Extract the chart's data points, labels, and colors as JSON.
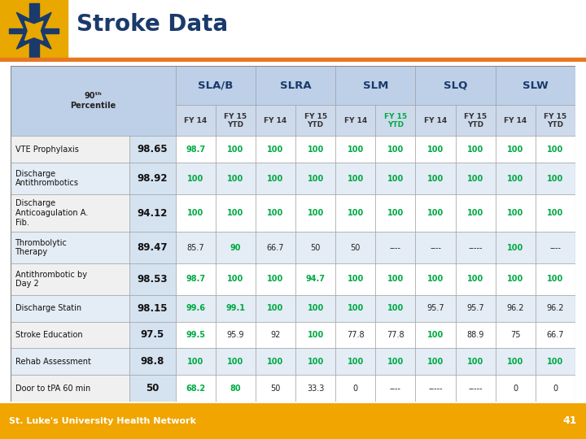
{
  "title": "Stroke Data",
  "title_color": "#1a3a6b",
  "group_headers": [
    "SLA/B",
    "SLRA",
    "SLM",
    "SLQ",
    "SLW"
  ],
  "rows": [
    {
      "label": "VTE Prophylaxis",
      "percentile": "98.65",
      "values": [
        "98.7",
        "100",
        "100",
        "100",
        "100",
        "100",
        "100",
        "100",
        "100",
        "100"
      ],
      "green_mask": [
        true,
        true,
        true,
        true,
        true,
        true,
        true,
        true,
        true,
        true
      ]
    },
    {
      "label": "Discharge\nAntithrombotics",
      "percentile": "98.92",
      "values": [
        "100",
        "100",
        "100",
        "100",
        "100",
        "100",
        "100",
        "100",
        "100",
        "100"
      ],
      "green_mask": [
        true,
        true,
        true,
        true,
        true,
        true,
        true,
        true,
        true,
        true
      ]
    },
    {
      "label": "Discharge\nAnticoagulation A.\nFib.",
      "percentile": "94.12",
      "values": [
        "100",
        "100",
        "100",
        "100",
        "100",
        "100",
        "100",
        "100",
        "100",
        "100"
      ],
      "green_mask": [
        true,
        true,
        true,
        true,
        true,
        true,
        true,
        true,
        true,
        true
      ]
    },
    {
      "label": "Thrombolytic\nTherapy",
      "percentile": "89.47",
      "values": [
        "85.7",
        "90",
        "66.7",
        "50",
        "50",
        "----",
        "----",
        "-----",
        "100",
        "----"
      ],
      "green_mask": [
        false,
        true,
        false,
        false,
        false,
        false,
        false,
        false,
        true,
        false
      ]
    },
    {
      "label": "Antithrombotic by\nDay 2",
      "percentile": "98.53",
      "values": [
        "98.7",
        "100",
        "100",
        "94.7",
        "100",
        "100",
        "100",
        "100",
        "100",
        "100"
      ],
      "green_mask": [
        true,
        true,
        true,
        true,
        true,
        true,
        true,
        true,
        true,
        true
      ]
    },
    {
      "label": "Discharge Statin",
      "percentile": "98.15",
      "values": [
        "99.6",
        "99.1",
        "100",
        "100",
        "100",
        "100",
        "95.7",
        "95.7",
        "96.2",
        "96.2"
      ],
      "green_mask": [
        true,
        true,
        true,
        true,
        true,
        true,
        false,
        false,
        false,
        false
      ]
    },
    {
      "label": "Stroke Education",
      "percentile": "97.5",
      "values": [
        "99.5",
        "95.9",
        "92",
        "100",
        "77.8",
        "77.8",
        "100",
        "88.9",
        "75",
        "66.7"
      ],
      "green_mask": [
        true,
        false,
        false,
        true,
        false,
        false,
        true,
        false,
        false,
        false
      ]
    },
    {
      "label": "Rehab Assessment",
      "percentile": "98.8",
      "values": [
        "100",
        "100",
        "100",
        "100",
        "100",
        "100",
        "100",
        "100",
        "100",
        "100"
      ],
      "green_mask": [
        true,
        true,
        true,
        true,
        true,
        true,
        true,
        true,
        true,
        true
      ]
    },
    {
      "label": "Door to tPA 60 min",
      "percentile": "50",
      "values": [
        "68.2",
        "80",
        "50",
        "33.3",
        "0",
        "----",
        "-----",
        "-----",
        "0",
        "0"
      ],
      "green_mask": [
        true,
        true,
        false,
        false,
        false,
        false,
        false,
        false,
        false,
        false
      ]
    }
  ],
  "footer_text": "St. Luke's University Health Network",
  "footer_number": "41",
  "footer_bg": "#f0a500",
  "logo_gold": "#e8a800",
  "orange_line": "#e87722",
  "green_value_color": "#00aa44",
  "dark_navy": "#1a3a6b",
  "header_bg": "#bdd0e8",
  "subheader_bg": "#cddaec",
  "perc_bg": "#d5e2f0",
  "row_bgs": [
    "#ffffff",
    "#e4ecf5"
  ],
  "label_bgs": [
    "#f0f0f0",
    "#e4ecf5"
  ]
}
